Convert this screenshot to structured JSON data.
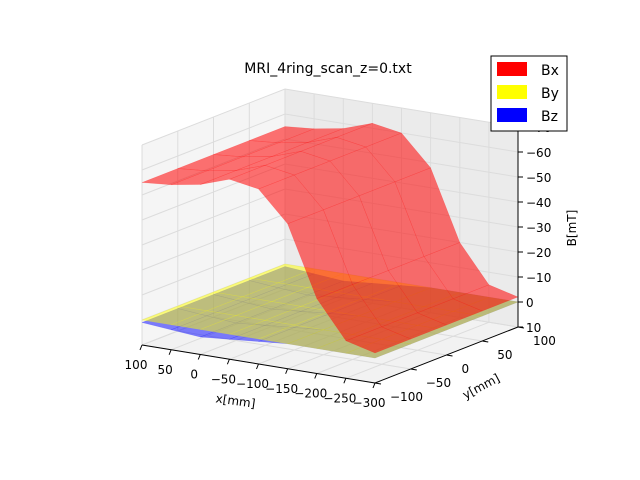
{
  "chart_data": {
    "type": "surface3d",
    "title": "MRI_4ring_scan_z=0.txt",
    "xlabel": "x[mm]",
    "ylabel": "y[mm]",
    "zlabel": "B[mT]",
    "xlim": [
      -300,
      100
    ],
    "ylim": [
      -100,
      100
    ],
    "zlim": [
      -70,
      10
    ],
    "x_ticks": [
      "100",
      "50",
      "0",
      "−50",
      "−100",
      "−150",
      "−200",
      "−250",
      "−300"
    ],
    "x_tick_values": [
      100,
      50,
      0,
      -50,
      -100,
      -150,
      -200,
      -250,
      -300
    ],
    "y_ticks": [
      "−100",
      "−50",
      "0",
      "50",
      "100"
    ],
    "y_tick_values": [
      -100,
      -50,
      0,
      50,
      100
    ],
    "z_ticks": [
      "−70",
      "−60",
      "−50",
      "−40",
      "−30",
      "−20",
      "−10",
      "0",
      "10"
    ],
    "z_tick_values": [
      -70,
      -60,
      -50,
      -40,
      -30,
      -20,
      -10,
      0,
      10
    ],
    "grid": true,
    "legend_position": "top-right",
    "series": [
      {
        "name": "Bx",
        "color": "#ff0000",
        "x": [
          -300,
          -250,
          -200,
          -150,
          -100,
          -50,
          0,
          50,
          100
        ],
        "values_y0": [
          -2,
          -5,
          -20,
          -48,
          -60,
          -62,
          -58,
          -56,
          -55
        ]
      },
      {
        "name": "By",
        "color": "#ffff00",
        "x": [
          -300,
          -250,
          -200,
          -150,
          -100,
          -50,
          0,
          50,
          100
        ],
        "values_y0": [
          0,
          0,
          0,
          0,
          0,
          0,
          0,
          0,
          0
        ]
      },
      {
        "name": "Bz",
        "color": "#0000ff",
        "x": [
          -300,
          -250,
          -200,
          -150,
          -100,
          -50,
          0,
          50,
          100
        ],
        "values_y0": [
          0,
          0,
          0,
          0,
          1,
          2,
          3,
          2,
          1
        ]
      }
    ]
  }
}
